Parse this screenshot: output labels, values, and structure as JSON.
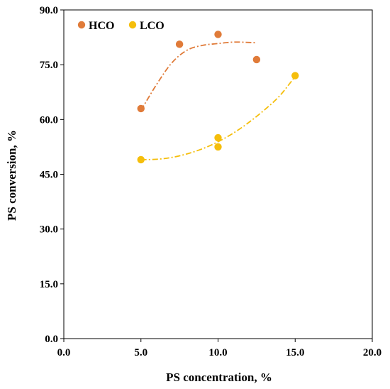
{
  "chart_data": {
    "type": "scatter",
    "title": "",
    "xlabel": "PS concentration, %",
    "ylabel": "PS conversion, %",
    "xlim": [
      0,
      20
    ],
    "ylim": [
      0,
      90
    ],
    "xticks": [
      "0.0",
      "5.0",
      "10.0",
      "15.0",
      "20.0"
    ],
    "yticks": [
      "0.0",
      "15.0",
      "30.0",
      "45.0",
      "60.0",
      "75.0",
      "90.0"
    ],
    "grid": false,
    "legend_position": "top-left",
    "series": [
      {
        "name": "HCO",
        "color": "#E07B39",
        "points": [
          {
            "x": 5.0,
            "y": 63.0
          },
          {
            "x": 7.5,
            "y": 80.6
          },
          {
            "x": 10.0,
            "y": 83.3
          },
          {
            "x": 12.5,
            "y": 76.4
          }
        ],
        "trendline": {
          "style": "dash-dot",
          "points": [
            {
              "x": 5.0,
              "y": 62.5
            },
            {
              "x": 6.0,
              "y": 69.5
            },
            {
              "x": 7.0,
              "y": 75.5
            },
            {
              "x": 8.0,
              "y": 79.0
            },
            {
              "x": 9.0,
              "y": 80.3
            },
            {
              "x": 10.0,
              "y": 80.8
            },
            {
              "x": 11.0,
              "y": 81.2
            },
            {
              "x": 12.0,
              "y": 81.1
            },
            {
              "x": 12.5,
              "y": 81.0
            }
          ]
        }
      },
      {
        "name": "LCO",
        "color": "#F5BE0B",
        "points": [
          {
            "x": 5.0,
            "y": 49.0
          },
          {
            "x": 10.0,
            "y": 55.0
          },
          {
            "x": 10.0,
            "y": 52.5
          },
          {
            "x": 15.0,
            "y": 72.0
          }
        ],
        "trendline": {
          "style": "dash-dot",
          "points": [
            {
              "x": 5.0,
              "y": 49.0
            },
            {
              "x": 6.0,
              "y": 49.1
            },
            {
              "x": 7.0,
              "y": 49.6
            },
            {
              "x": 8.0,
              "y": 50.6
            },
            {
              "x": 9.0,
              "y": 52.0
            },
            {
              "x": 10.0,
              "y": 53.9
            },
            {
              "x": 11.0,
              "y": 56.3
            },
            {
              "x": 12.0,
              "y": 59.2
            },
            {
              "x": 13.0,
              "y": 62.6
            },
            {
              "x": 14.0,
              "y": 66.5
            },
            {
              "x": 15.0,
              "y": 71.8
            }
          ]
        }
      }
    ]
  }
}
